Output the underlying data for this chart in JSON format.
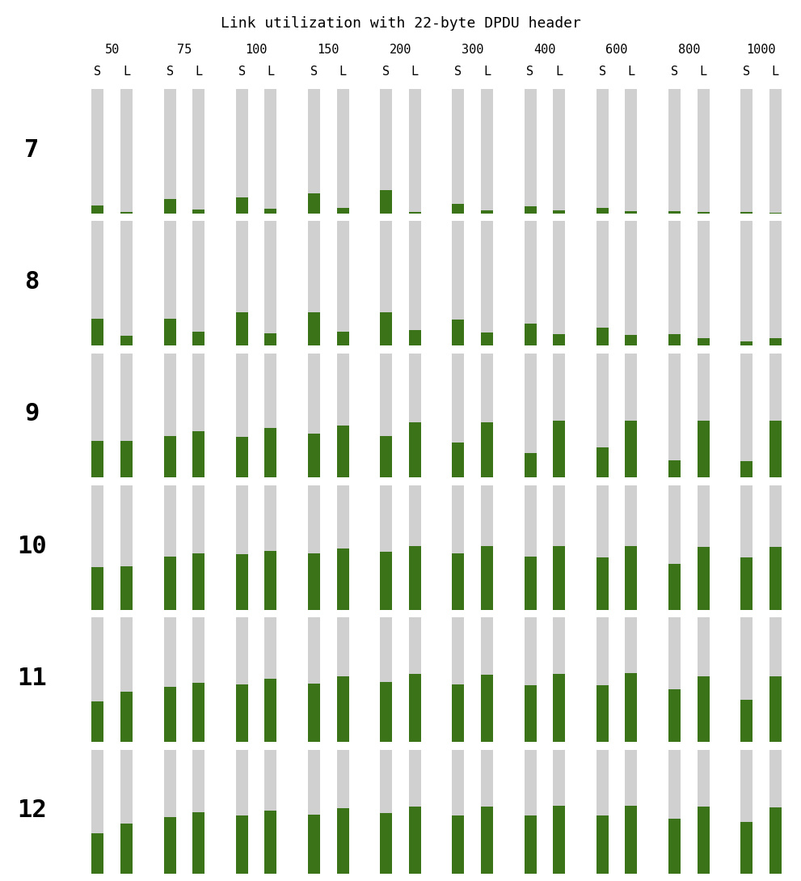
{
  "title": "Link utilization with 22-byte DPDU header",
  "packet_sizes": [
    50,
    75,
    100,
    150,
    200,
    300,
    400,
    600,
    800,
    1000
  ],
  "interleavers": [
    7,
    8,
    9,
    10,
    11,
    12
  ],
  "bar_labels": [
    "S",
    "L"
  ],
  "green_color": "#3a7318",
  "gray_color": "#d0d0d0",
  "background_color": "#ffffff",
  "values": {
    "7": {
      "50": [
        0.065,
        0.01
      ],
      "75": [
        0.115,
        0.03
      ],
      "100": [
        0.13,
        0.035
      ],
      "150": [
        0.16,
        0.045
      ],
      "200": [
        0.185,
        0.01
      ],
      "300": [
        0.075,
        0.025
      ],
      "400": [
        0.055,
        0.02
      ],
      "600": [
        0.045,
        0.018
      ],
      "800": [
        0.018,
        0.01
      ],
      "1000": [
        0.012,
        0.005
      ]
    },
    "8": {
      "50": [
        0.215,
        0.075
      ],
      "75": [
        0.215,
        0.11
      ],
      "100": [
        0.265,
        0.095
      ],
      "150": [
        0.265,
        0.11
      ],
      "200": [
        0.265,
        0.12
      ],
      "300": [
        0.21,
        0.105
      ],
      "400": [
        0.175,
        0.09
      ],
      "600": [
        0.145,
        0.085
      ],
      "800": [
        0.09,
        0.06
      ],
      "1000": [
        0.03,
        0.055
      ]
    },
    "9": {
      "50": [
        0.295,
        0.295
      ],
      "75": [
        0.335,
        0.375
      ],
      "100": [
        0.33,
        0.4
      ],
      "150": [
        0.355,
        0.42
      ],
      "200": [
        0.335,
        0.445
      ],
      "300": [
        0.28,
        0.445
      ],
      "400": [
        0.2,
        0.455
      ],
      "600": [
        0.245,
        0.46
      ],
      "800": [
        0.14,
        0.455
      ],
      "1000": [
        0.13,
        0.455
      ]
    },
    "10": {
      "50": [
        0.345,
        0.35
      ],
      "75": [
        0.43,
        0.45
      ],
      "100": [
        0.445,
        0.475
      ],
      "150": [
        0.455,
        0.495
      ],
      "200": [
        0.465,
        0.51
      ],
      "300": [
        0.45,
        0.51
      ],
      "400": [
        0.425,
        0.51
      ],
      "600": [
        0.42,
        0.515
      ],
      "800": [
        0.37,
        0.505
      ],
      "1000": [
        0.42,
        0.505
      ]
    },
    "11": {
      "50": [
        0.325,
        0.405
      ],
      "75": [
        0.44,
        0.475
      ],
      "100": [
        0.46,
        0.505
      ],
      "150": [
        0.47,
        0.525
      ],
      "200": [
        0.48,
        0.545
      ],
      "300": [
        0.46,
        0.54
      ],
      "400": [
        0.455,
        0.545
      ],
      "600": [
        0.455,
        0.555
      ],
      "800": [
        0.42,
        0.53
      ],
      "1000": [
        0.34,
        0.53
      ]
    },
    "12": {
      "50": [
        0.325,
        0.405
      ],
      "75": [
        0.455,
        0.495
      ],
      "100": [
        0.47,
        0.51
      ],
      "150": [
        0.475,
        0.53
      ],
      "200": [
        0.49,
        0.545
      ],
      "300": [
        0.47,
        0.545
      ],
      "400": [
        0.47,
        0.548
      ],
      "600": [
        0.47,
        0.548
      ],
      "800": [
        0.445,
        0.54
      ],
      "1000": [
        0.42,
        0.535
      ]
    }
  },
  "title_fontsize": 13,
  "label_fontsize": 11,
  "row_label_fontsize": 22
}
